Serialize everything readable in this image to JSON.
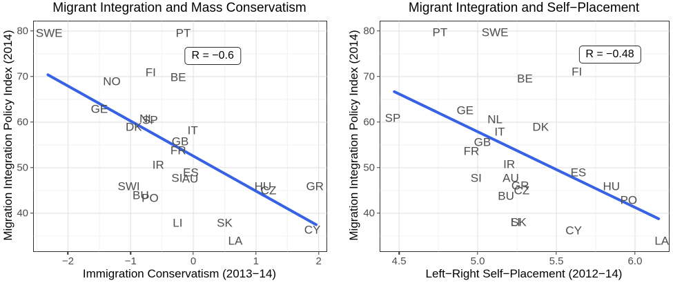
{
  "figure": {
    "background": "#ffffff",
    "trend_color": "#3862e4",
    "label_color": "#4d4d4d",
    "grid_major_color": "#e4e4e4",
    "grid_minor_color": "#f0f0f0",
    "panel_border_color": "#2f2f2f",
    "tick_color": "#333333"
  },
  "chart_data": [
    {
      "type": "scatter",
      "title": "Migrant Integration and Mass Conservatism",
      "xlabel": "Immigration Conservatism (2013−14)",
      "ylabel": "Migration Integration Policy Index (2014)",
      "annotation": {
        "text": "R = −0.6",
        "x": 0.31,
        "y": 74.6
      },
      "xlim": [
        -2.545,
        2.125
      ],
      "ylim": [
        31.67,
        82.12
      ],
      "grid": true,
      "x_ticks": [
        {
          "v": -2,
          "label": "−2"
        },
        {
          "v": -1,
          "label": "−1"
        },
        {
          "v": 0,
          "label": "0"
        },
        {
          "v": 1,
          "label": "1"
        },
        {
          "v": 2,
          "label": "2"
        }
      ],
      "y_ticks": [
        {
          "v": 40,
          "label": "40"
        },
        {
          "v": 50,
          "label": "50"
        },
        {
          "v": 60,
          "label": "60"
        },
        {
          "v": 70,
          "label": "70"
        },
        {
          "v": 80,
          "label": "80"
        }
      ],
      "x_minor": [
        -2.5,
        -1.5,
        -0.5,
        0.5,
        1.5
      ],
      "y_minor": [
        35,
        45,
        55,
        65,
        75
      ],
      "trend": {
        "x1": -2.32,
        "y1": 70.4,
        "x2": 1.96,
        "y2": 37.5
      },
      "points": [
        {
          "label": "SWE",
          "x": -2.3,
          "y": 79.6
        },
        {
          "label": "PT",
          "x": -0.16,
          "y": 79.6
        },
        {
          "label": "FI",
          "x": -0.68,
          "y": 70.9
        },
        {
          "label": "BE",
          "x": -0.24,
          "y": 69.8
        },
        {
          "label": "NO",
          "x": -1.3,
          "y": 69.0
        },
        {
          "label": "GE",
          "x": -1.5,
          "y": 62.9
        },
        {
          "label": "NL",
          "x": -0.74,
          "y": 60.8
        },
        {
          "label": "SP",
          "x": -0.69,
          "y": 60.5
        },
        {
          "label": "DK",
          "x": -0.95,
          "y": 58.9
        },
        {
          "label": "IT",
          "x": -0.01,
          "y": 58.2
        },
        {
          "label": "GB",
          "x": -0.21,
          "y": 55.7
        },
        {
          "label": "FR",
          "x": -0.24,
          "y": 53.8
        },
        {
          "label": "IR",
          "x": -0.56,
          "y": 50.6
        },
        {
          "label": "ES",
          "x": -0.04,
          "y": 48.9
        },
        {
          "label": "SI",
          "x": -0.26,
          "y": 47.7
        },
        {
          "label": "AU",
          "x": -0.05,
          "y": 47.6
        },
        {
          "label": "SWI",
          "x": -1.03,
          "y": 45.9
        },
        {
          "label": "HU",
          "x": 1.11,
          "y": 45.9
        },
        {
          "label": "CZ",
          "x": 1.2,
          "y": 45.0
        },
        {
          "label": "GR",
          "x": 1.94,
          "y": 45.9
        },
        {
          "label": "BU",
          "x": -0.84,
          "y": 43.9
        },
        {
          "label": "PO",
          "x": -0.69,
          "y": 43.3
        },
        {
          "label": "LI",
          "x": -0.25,
          "y": 37.9
        },
        {
          "label": "SK",
          "x": 0.5,
          "y": 37.9
        },
        {
          "label": "CY",
          "x": 1.9,
          "y": 36.3
        },
        {
          "label": "LA",
          "x": 0.67,
          "y": 33.9
        }
      ]
    },
    {
      "type": "scatter",
      "title": "Migrant Integration and Self−Placement",
      "xlabel": "Left−Right Self−Placement (2012−14)",
      "ylabel": "Migration Integration Policy Index (2014)",
      "annotation": {
        "text": "R = −0.48",
        "x": 5.84,
        "y": 74.8
      },
      "xlim": [
        4.381,
        6.215
      ],
      "ylim": [
        31.67,
        82.12
      ],
      "grid": true,
      "x_ticks": [
        {
          "v": 4.5,
          "label": "4.5"
        },
        {
          "v": 5.0,
          "label": "5.0"
        },
        {
          "v": 5.5,
          "label": "5.5"
        },
        {
          "v": 6.0,
          "label": "6.0"
        }
      ],
      "y_ticks": [
        {
          "v": 40,
          "label": "40"
        },
        {
          "v": 50,
          "label": "50"
        },
        {
          "v": 60,
          "label": "60"
        },
        {
          "v": 70,
          "label": "70"
        },
        {
          "v": 80,
          "label": "80"
        }
      ],
      "x_minor": [
        4.75,
        5.25,
        5.75
      ],
      "y_minor": [
        35,
        45,
        55,
        65,
        75
      ],
      "trend": {
        "x1": 4.47,
        "y1": 66.7,
        "x2": 6.15,
        "y2": 38.8
      },
      "points": [
        {
          "label": "PT",
          "x": 4.76,
          "y": 79.7
        },
        {
          "label": "SWE",
          "x": 5.11,
          "y": 79.7
        },
        {
          "label": "FI",
          "x": 5.63,
          "y": 71.1
        },
        {
          "label": "BE",
          "x": 5.3,
          "y": 69.6
        },
        {
          "label": "GE",
          "x": 4.92,
          "y": 62.6
        },
        {
          "label": "SP",
          "x": 4.46,
          "y": 60.9
        },
        {
          "label": "NL",
          "x": 5.11,
          "y": 60.6
        },
        {
          "label": "DK",
          "x": 5.4,
          "y": 58.9
        },
        {
          "label": "IT",
          "x": 5.14,
          "y": 57.9
        },
        {
          "label": "GB",
          "x": 5.03,
          "y": 55.6
        },
        {
          "label": "FR",
          "x": 4.96,
          "y": 53.7
        },
        {
          "label": "IR",
          "x": 5.2,
          "y": 50.8
        },
        {
          "label": "SI",
          "x": 4.99,
          "y": 47.7
        },
        {
          "label": "AU",
          "x": 5.21,
          "y": 47.7
        },
        {
          "label": "ES",
          "x": 5.64,
          "y": 49.0
        },
        {
          "label": "GR",
          "x": 5.27,
          "y": 46.1
        },
        {
          "label": "CZ",
          "x": 5.28,
          "y": 45.0
        },
        {
          "label": "BU",
          "x": 5.18,
          "y": 43.8
        },
        {
          "label": "HU",
          "x": 5.85,
          "y": 45.9
        },
        {
          "label": "PO",
          "x": 5.96,
          "y": 42.9
        },
        {
          "label": "LI",
          "x": 5.24,
          "y": 38.1
        },
        {
          "label": "SK",
          "x": 5.26,
          "y": 38.0
        },
        {
          "label": "CY",
          "x": 5.61,
          "y": 36.2
        },
        {
          "label": "LA",
          "x": 6.17,
          "y": 33.9
        }
      ]
    }
  ]
}
